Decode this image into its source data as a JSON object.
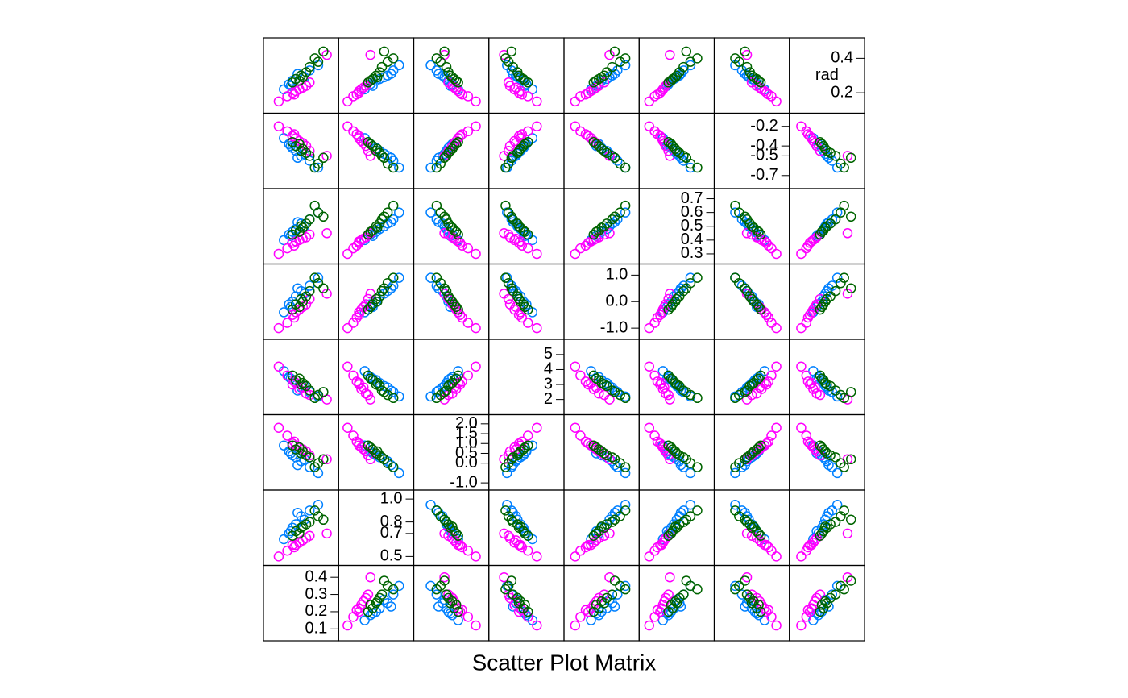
{
  "chart_data": {
    "type": "splom",
    "title": "Scatter Plot Matrix",
    "variables": [
      {
        "lim": [
          0.05,
          0.45
        ],
        "ticks": [
          0.1,
          0.2,
          0.3,
          0.4
        ]
      },
      {
        "lim": [
          0.45,
          1.05
        ],
        "ticks": [
          0.5,
          0.7,
          0.8,
          {
            "value": 1,
            "label": "1.0"
          }
        ]
      },
      {
        "lim": [
          -1.2,
          2.3
        ],
        "ticks": [
          {
            "value": -1,
            "label": "-1.0"
          },
          {
            "value": 0,
            "label": "0.0"
          },
          0.5,
          {
            "value": 1,
            "label": "1.0"
          },
          1.5,
          {
            "value": 2,
            "label": "2.0"
          }
        ]
      },
      {
        "lim": [
          1.2,
          5.8
        ],
        "ticks": [
          2,
          3,
          4,
          5
        ]
      },
      {
        "lim": [
          -1.3,
          1.3
        ],
        "ticks": [
          {
            "value": -1,
            "label": "-1.0"
          },
          {
            "value": 0,
            "label": "0.0"
          },
          {
            "value": 1,
            "label": "1.0"
          }
        ]
      },
      {
        "lim": [
          0.25,
          0.75
        ],
        "ticks": [
          0.3,
          0.4,
          0.5,
          0.6,
          0.7
        ]
      },
      {
        "lim": [
          -0.8,
          -0.1
        ],
        "ticks": [
          -0.7,
          -0.5,
          -0.4,
          -0.2
        ]
      },
      {
        "name": "rad",
        "lim": [
          0.1,
          0.5
        ],
        "ticks": [
          0.2,
          0.4
        ]
      }
    ],
    "series": [
      {
        "color": "#0080ff",
        "points": [
          [
            0.22,
            0.78,
            0.3,
            3.1,
            0.2,
            0.48,
            -0.45,
            0.28
          ],
          [
            0.25,
            0.85,
            0.1,
            2.8,
            0.4,
            0.52,
            -0.5,
            0.3
          ],
          [
            0.18,
            0.7,
            0.6,
            3.5,
            -0.1,
            0.44,
            -0.38,
            0.25
          ],
          [
            0.3,
            0.9,
            -0.2,
            2.5,
            0.6,
            0.55,
            -0.55,
            0.33
          ],
          [
            0.2,
            0.75,
            0.4,
            3.3,
            0.0,
            0.46,
            -0.42,
            0.27
          ],
          [
            0.35,
            0.95,
            -0.5,
            2.2,
            0.9,
            0.6,
            -0.62,
            0.36
          ],
          [
            0.15,
            0.65,
            0.9,
            3.9,
            -0.4,
            0.4,
            -0.32,
            0.22
          ],
          [
            0.27,
            0.82,
            0.2,
            2.9,
            0.3,
            0.5,
            -0.48,
            0.29
          ],
          [
            0.23,
            0.88,
            -0.1,
            2.6,
            0.5,
            0.53,
            -0.52,
            0.31
          ],
          [
            0.19,
            0.72,
            0.5,
            3.4,
            -0.2,
            0.43,
            -0.4,
            0.24
          ]
        ]
      },
      {
        "color": "#ff00ff",
        "points": [
          [
            0.2,
            0.6,
            1.0,
            3.0,
            -0.5,
            0.38,
            -0.3,
            0.2
          ],
          [
            0.24,
            0.62,
            0.8,
            2.7,
            -0.3,
            0.4,
            -0.35,
            0.22
          ],
          [
            0.17,
            0.55,
            1.4,
            3.6,
            -0.8,
            0.34,
            -0.25,
            0.18
          ],
          [
            0.28,
            0.66,
            0.6,
            2.4,
            -0.1,
            0.42,
            -0.4,
            0.24
          ],
          [
            0.21,
            0.58,
            1.1,
            3.2,
            -0.6,
            0.36,
            -0.28,
            0.19
          ],
          [
            0.4,
            0.7,
            0.2,
            2.0,
            0.3,
            0.45,
            -0.5,
            0.42
          ],
          [
            0.12,
            0.5,
            1.8,
            4.2,
            -1.0,
            0.3,
            -0.2,
            0.15
          ],
          [
            0.26,
            0.64,
            0.7,
            2.8,
            -0.2,
            0.41,
            -0.37,
            0.23
          ],
          [
            0.22,
            0.6,
            0.9,
            3.1,
            -0.4,
            0.39,
            -0.32,
            0.21
          ],
          [
            0.3,
            0.68,
            0.4,
            2.3,
            0.1,
            0.44,
            -0.45,
            0.26
          ]
        ]
      },
      {
        "color": "#006400",
        "points": [
          [
            0.25,
            0.75,
            0.5,
            3.0,
            0.1,
            0.5,
            -0.45,
            0.3
          ],
          [
            0.3,
            0.8,
            0.3,
            2.6,
            0.4,
            0.55,
            -0.5,
            0.35
          ],
          [
            0.22,
            0.72,
            0.7,
            3.3,
            -0.1,
            0.47,
            -0.4,
            0.28
          ],
          [
            0.35,
            0.85,
            0.0,
            2.3,
            0.7,
            0.6,
            -0.58,
            0.38
          ],
          [
            0.28,
            0.78,
            0.4,
            2.9,
            0.2,
            0.52,
            -0.47,
            0.32
          ],
          [
            0.2,
            0.68,
            0.9,
            3.6,
            -0.3,
            0.44,
            -0.36,
            0.26
          ],
          [
            0.33,
            0.9,
            -0.2,
            2.1,
            0.9,
            0.65,
            -0.62,
            0.4
          ],
          [
            0.26,
            0.76,
            0.6,
            3.1,
            0.0,
            0.49,
            -0.43,
            0.29
          ],
          [
            0.38,
            0.82,
            0.2,
            2.5,
            0.5,
            0.57,
            -0.52,
            0.44
          ],
          [
            0.24,
            0.7,
            0.8,
            3.4,
            -0.2,
            0.46,
            -0.38,
            0.27
          ]
        ]
      }
    ]
  }
}
